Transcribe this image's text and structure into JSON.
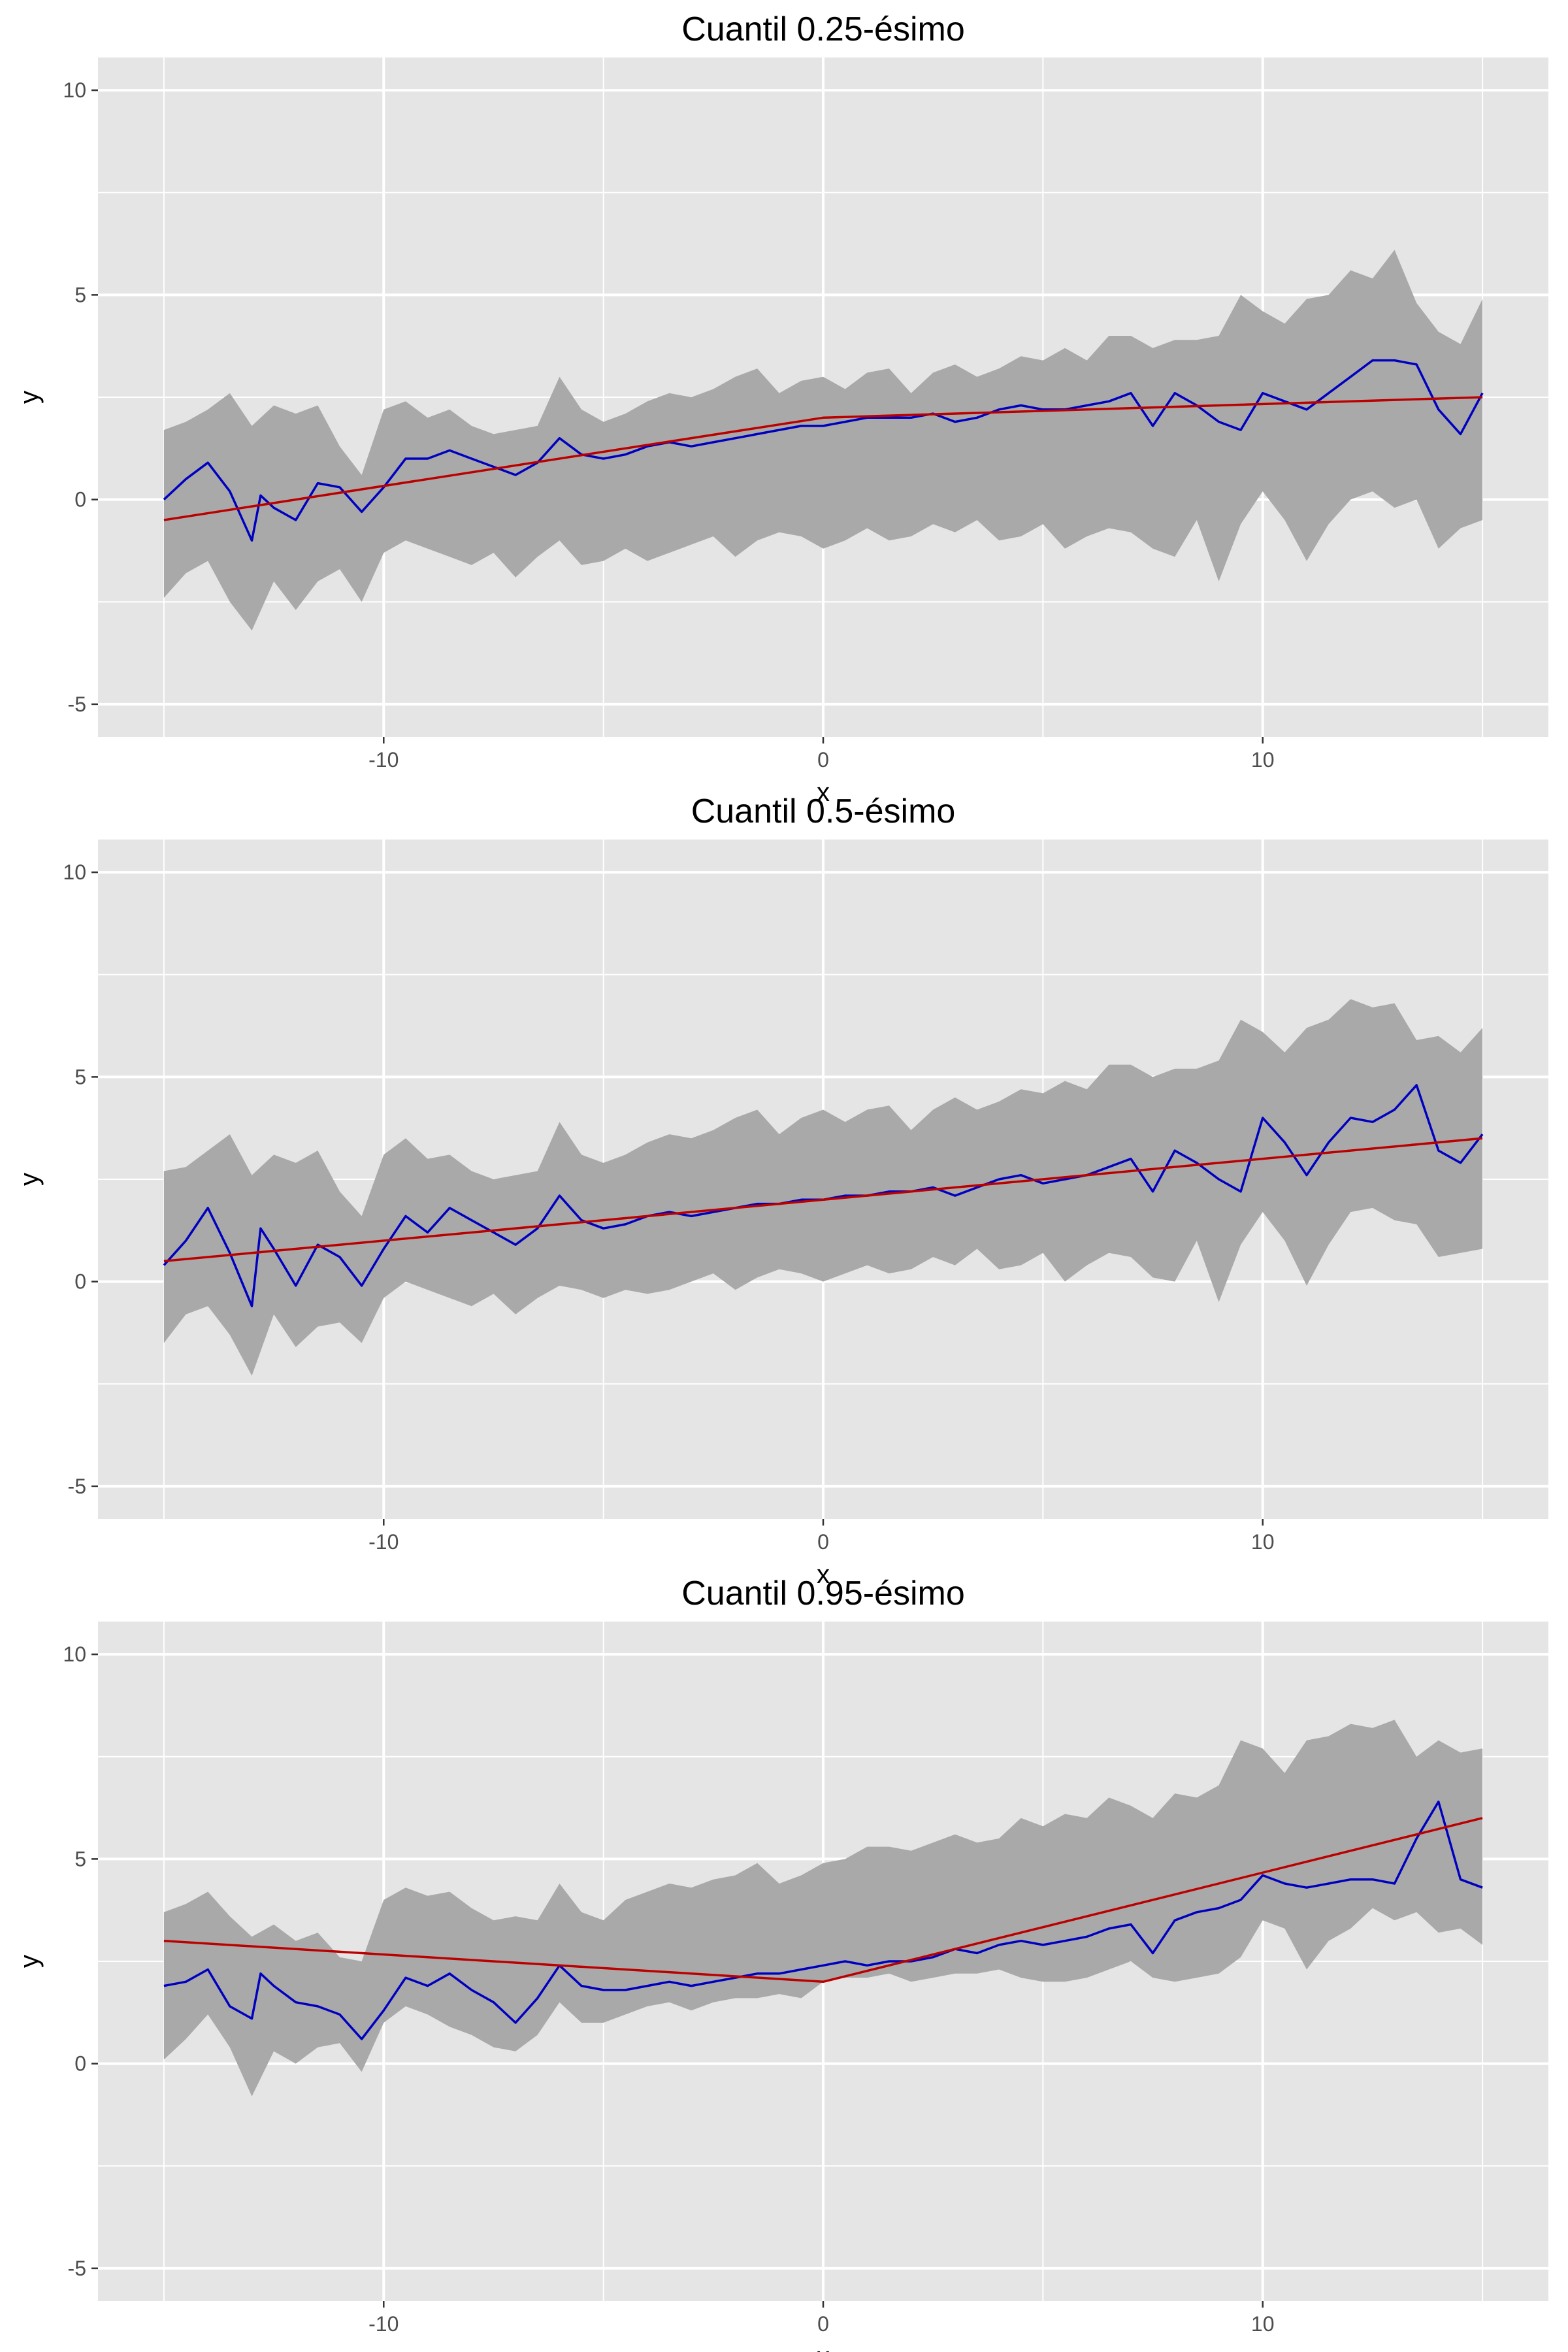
{
  "colors": {
    "panel_background": "#E5E5E5",
    "grid_major": "#FFFFFF",
    "grid_minor": "#F2F2F2",
    "band_fill": "#A9A9A9",
    "estimate_line": "#0000C0",
    "true_line": "#BB0000",
    "tick_text": "#4D4D4D",
    "tick_mark": "#333333"
  },
  "chart_data": [
    {
      "type": "area",
      "title": "Cuantil 0.25-ésimo",
      "xlabel": "x",
      "ylabel": "y",
      "xlim": [
        -16.5,
        16.5
      ],
      "ylim": [
        -5.8,
        10.8
      ],
      "x_ticks": [
        -10,
        0,
        10
      ],
      "x_tick_labels": [
        "-10",
        "0",
        "10"
      ],
      "y_ticks": [
        -5,
        0,
        5,
        10
      ],
      "y_tick_labels": [
        "-5",
        "0",
        "5",
        "10"
      ],
      "grid": true,
      "series": [
        {
          "kind": "band",
          "x": [
            -15,
            -14.5,
            -14,
            -13.5,
            -13,
            -12.5,
            -12,
            -11.5,
            -11,
            -10.5,
            -10,
            -9.5,
            -9,
            -8.5,
            -8,
            -7.5,
            -7,
            -6.5,
            -6,
            -5.5,
            -5,
            -4.5,
            -4,
            -3.5,
            -3,
            -2.5,
            -2,
            -1.5,
            -1,
            -0.5,
            0,
            0.5,
            1,
            1.5,
            2,
            2.5,
            3,
            3.5,
            4,
            4.5,
            5,
            5.5,
            6,
            6.5,
            7,
            7.5,
            8,
            8.5,
            9,
            9.5,
            10,
            10.5,
            11,
            11.5,
            12,
            12.5,
            13,
            13.5,
            14,
            14.5,
            15
          ],
          "lower": [
            -2.4,
            -1.8,
            -1.5,
            -2.5,
            -3.2,
            -2.0,
            -2.7,
            -2.0,
            -1.7,
            -2.5,
            -1.3,
            -1.0,
            -1.2,
            -1.4,
            -1.6,
            -1.3,
            -1.9,
            -1.4,
            -1.0,
            -1.6,
            -1.5,
            -1.2,
            -1.5,
            -1.3,
            -1.1,
            -0.9,
            -1.4,
            -1.0,
            -0.8,
            -0.9,
            -1.2,
            -1.0,
            -0.7,
            -1.0,
            -0.9,
            -0.6,
            -0.8,
            -0.5,
            -1.0,
            -0.9,
            -0.6,
            -1.2,
            -0.9,
            -0.7,
            -0.8,
            -1.2,
            -1.4,
            -0.5,
            -2.0,
            -0.6,
            0.2,
            -0.5,
            -1.5,
            -0.6,
            0.0,
            0.2,
            -0.2,
            0.0,
            -1.2,
            -0.7,
            -0.5
          ],
          "upper": [
            1.7,
            1.9,
            2.2,
            2.6,
            1.8,
            2.3,
            2.1,
            2.3,
            1.3,
            0.6,
            2.2,
            2.4,
            2.0,
            2.2,
            1.8,
            1.6,
            1.7,
            1.8,
            3.0,
            2.2,
            1.9,
            2.1,
            2.4,
            2.6,
            2.5,
            2.7,
            3.0,
            3.2,
            2.6,
            2.9,
            3.0,
            2.7,
            3.1,
            3.2,
            2.6,
            3.1,
            3.3,
            3.0,
            3.2,
            3.5,
            3.4,
            3.7,
            3.4,
            4.0,
            4.0,
            3.7,
            3.9,
            3.9,
            4.0,
            5.0,
            4.6,
            4.3,
            4.9,
            5.0,
            5.6,
            5.4,
            6.1,
            4.8,
            4.1,
            3.8,
            4.9
          ]
        },
        {
          "kind": "estimate",
          "x": [
            -15,
            -14.5,
            -14,
            -13.5,
            -13,
            -12.8,
            -12.5,
            -12,
            -11.5,
            -11,
            -10.5,
            -10,
            -9.5,
            -9,
            -8.5,
            -8,
            -7.5,
            -7,
            -6.5,
            -6,
            -5.5,
            -5,
            -4.5,
            -4,
            -3.5,
            -3,
            -2.5,
            -2,
            -1.5,
            -1,
            -0.5,
            0,
            0.5,
            1,
            1.5,
            2,
            2.5,
            3,
            3.5,
            4,
            4.5,
            5,
            5.5,
            6,
            6.5,
            7,
            7.5,
            8,
            8.5,
            9,
            9.5,
            10,
            10.5,
            11,
            11.5,
            12,
            12.5,
            13,
            13.5,
            14,
            14.5,
            15
          ],
          "y": [
            0.0,
            0.5,
            0.9,
            0.2,
            -1.0,
            0.1,
            -0.2,
            -0.5,
            0.4,
            0.3,
            -0.3,
            0.3,
            1.0,
            1.0,
            1.2,
            1.0,
            0.8,
            0.6,
            0.9,
            1.5,
            1.1,
            1.0,
            1.1,
            1.3,
            1.4,
            1.3,
            1.4,
            1.5,
            1.6,
            1.7,
            1.8,
            1.8,
            1.9,
            2.0,
            2.0,
            2.0,
            2.1,
            1.9,
            2.0,
            2.2,
            2.3,
            2.2,
            2.2,
            2.3,
            2.4,
            2.6,
            1.8,
            2.6,
            2.3,
            1.9,
            1.7,
            2.6,
            2.4,
            2.2,
            2.6,
            3.0,
            3.4,
            3.4,
            3.3,
            2.2,
            1.6,
            2.6
          ]
        },
        {
          "kind": "true_quantile",
          "x": [
            -15,
            0,
            15
          ],
          "y": [
            -0.5,
            2.0,
            2.5
          ]
        }
      ]
    },
    {
      "type": "area",
      "title": "Cuantil 0.5-ésimo",
      "xlabel": "x",
      "ylabel": "y",
      "xlim": [
        -16.5,
        16.5
      ],
      "ylim": [
        -5.8,
        10.8
      ],
      "x_ticks": [
        -10,
        0,
        10
      ],
      "x_tick_labels": [
        "-10",
        "0",
        "10"
      ],
      "y_ticks": [
        -5,
        0,
        5,
        10
      ],
      "y_tick_labels": [
        "-5",
        "0",
        "5",
        "10"
      ],
      "grid": true,
      "series": [
        {
          "kind": "band",
          "x": [
            -15,
            -14.5,
            -14,
            -13.5,
            -13,
            -12.5,
            -12,
            -11.5,
            -11,
            -10.5,
            -10,
            -9.5,
            -9,
            -8.5,
            -8,
            -7.5,
            -7,
            -6.5,
            -6,
            -5.5,
            -5,
            -4.5,
            -4,
            -3.5,
            -3,
            -2.5,
            -2,
            -1.5,
            -1,
            -0.5,
            0,
            0.5,
            1,
            1.5,
            2,
            2.5,
            3,
            3.5,
            4,
            4.5,
            5,
            5.5,
            6,
            6.5,
            7,
            7.5,
            8,
            8.5,
            9,
            9.5,
            10,
            10.5,
            11,
            11.5,
            12,
            12.5,
            13,
            13.5,
            14,
            14.5,
            15
          ],
          "lower": [
            -1.5,
            -0.8,
            -0.6,
            -1.3,
            -2.3,
            -0.8,
            -1.6,
            -1.1,
            -1.0,
            -1.5,
            -0.4,
            0.0,
            -0.2,
            -0.4,
            -0.6,
            -0.3,
            -0.8,
            -0.4,
            -0.1,
            -0.2,
            -0.4,
            -0.2,
            -0.3,
            -0.2,
            0.0,
            0.2,
            -0.2,
            0.1,
            0.3,
            0.2,
            0.0,
            0.2,
            0.4,
            0.2,
            0.3,
            0.6,
            0.4,
            0.8,
            0.3,
            0.4,
            0.7,
            0.0,
            0.4,
            0.7,
            0.6,
            0.1,
            0.0,
            1.0,
            -0.5,
            0.9,
            1.7,
            1.0,
            -0.1,
            0.9,
            1.7,
            1.8,
            1.5,
            1.4,
            0.6,
            0.7,
            0.8
          ],
          "upper": [
            2.7,
            2.8,
            3.2,
            3.6,
            2.6,
            3.1,
            2.9,
            3.2,
            2.2,
            1.6,
            3.1,
            3.5,
            3.0,
            3.1,
            2.7,
            2.5,
            2.6,
            2.7,
            3.9,
            3.1,
            2.9,
            3.1,
            3.4,
            3.6,
            3.5,
            3.7,
            4.0,
            4.2,
            3.6,
            4.0,
            4.2,
            3.9,
            4.2,
            4.3,
            3.7,
            4.2,
            4.5,
            4.2,
            4.4,
            4.7,
            4.6,
            4.9,
            4.7,
            5.3,
            5.3,
            5.0,
            5.2,
            5.2,
            5.4,
            6.4,
            6.1,
            5.6,
            6.2,
            6.4,
            6.9,
            6.7,
            6.8,
            5.9,
            6.0,
            5.6,
            6.2
          ]
        },
        {
          "kind": "estimate",
          "x": [
            -15,
            -14.5,
            -14,
            -13.5,
            -13,
            -12.8,
            -12.5,
            -12,
            -11.5,
            -11,
            -10.5,
            -10,
            -9.5,
            -9,
            -8.5,
            -8,
            -7.5,
            -7,
            -6.5,
            -6,
            -5.5,
            -5,
            -4.5,
            -4,
            -3.5,
            -3,
            -2.5,
            -2,
            -1.5,
            -1,
            -0.5,
            0,
            0.5,
            1,
            1.5,
            2,
            2.5,
            3,
            3.5,
            4,
            4.5,
            5,
            5.5,
            6,
            6.5,
            7,
            7.5,
            8,
            8.5,
            9,
            9.5,
            10,
            10.5,
            11,
            11.5,
            12,
            12.5,
            13,
            13.5,
            14,
            14.5,
            15
          ],
          "y": [
            0.4,
            1.0,
            1.8,
            0.7,
            -0.6,
            1.3,
            0.8,
            -0.1,
            0.9,
            0.6,
            -0.1,
            0.8,
            1.6,
            1.2,
            1.8,
            1.5,
            1.2,
            0.9,
            1.3,
            2.1,
            1.5,
            1.3,
            1.4,
            1.6,
            1.7,
            1.6,
            1.7,
            1.8,
            1.9,
            1.9,
            2.0,
            2.0,
            2.1,
            2.1,
            2.2,
            2.2,
            2.3,
            2.1,
            2.3,
            2.5,
            2.6,
            2.4,
            2.5,
            2.6,
            2.8,
            3.0,
            2.2,
            3.2,
            2.9,
            2.5,
            2.2,
            4.0,
            3.4,
            2.6,
            3.4,
            4.0,
            3.9,
            4.2,
            4.8,
            3.2,
            2.9,
            3.6
          ]
        },
        {
          "kind": "true_quantile",
          "x": [
            -15,
            15
          ],
          "y": [
            0.5,
            3.5
          ]
        }
      ]
    },
    {
      "type": "area",
      "title": "Cuantil 0.95-ésimo",
      "xlabel": "x",
      "ylabel": "y",
      "xlim": [
        -16.5,
        16.5
      ],
      "ylim": [
        -5.8,
        10.8
      ],
      "x_ticks": [
        -10,
        0,
        10
      ],
      "x_tick_labels": [
        "-10",
        "0",
        "10"
      ],
      "y_ticks": [
        -5,
        0,
        5,
        10
      ],
      "y_tick_labels": [
        "-5",
        "0",
        "5",
        "10"
      ],
      "grid": true,
      "series": [
        {
          "kind": "band",
          "x": [
            -15,
            -14.5,
            -14,
            -13.5,
            -13,
            -12.5,
            -12,
            -11.5,
            -11,
            -10.5,
            -10,
            -9.5,
            -9,
            -8.5,
            -8,
            -7.5,
            -7,
            -6.5,
            -6,
            -5.5,
            -5,
            -4.5,
            -4,
            -3.5,
            -3,
            -2.5,
            -2,
            -1.5,
            -1,
            -0.5,
            0,
            0.5,
            1,
            1.5,
            2,
            2.5,
            3,
            3.5,
            4,
            4.5,
            5,
            5.5,
            6,
            6.5,
            7,
            7.5,
            8,
            8.5,
            9,
            9.5,
            10,
            10.5,
            11,
            11.5,
            12,
            12.5,
            13,
            13.5,
            14,
            14.5,
            15
          ],
          "lower": [
            0.1,
            0.6,
            1.2,
            0.4,
            -0.8,
            0.3,
            0.0,
            0.4,
            0.5,
            -0.2,
            1.0,
            1.4,
            1.2,
            0.9,
            0.7,
            0.4,
            0.3,
            0.7,
            1.5,
            1.0,
            1.0,
            1.2,
            1.4,
            1.5,
            1.3,
            1.5,
            1.6,
            1.6,
            1.7,
            1.6,
            2.0,
            2.1,
            2.1,
            2.2,
            2.0,
            2.1,
            2.2,
            2.2,
            2.3,
            2.1,
            2.0,
            2.0,
            2.1,
            2.3,
            2.5,
            2.1,
            2.0,
            2.1,
            2.2,
            2.6,
            3.5,
            3.3,
            2.3,
            3.0,
            3.3,
            3.8,
            3.5,
            3.7,
            3.2,
            3.3,
            2.9
          ],
          "upper": [
            3.7,
            3.9,
            4.2,
            3.6,
            3.1,
            3.4,
            3.0,
            3.2,
            2.6,
            2.5,
            4.0,
            4.3,
            4.1,
            4.2,
            3.8,
            3.5,
            3.6,
            3.5,
            4.4,
            3.7,
            3.5,
            4.0,
            4.2,
            4.4,
            4.3,
            4.5,
            4.6,
            4.9,
            4.4,
            4.6,
            4.9,
            5.0,
            5.3,
            5.3,
            5.2,
            5.4,
            5.6,
            5.4,
            5.5,
            6.0,
            5.8,
            6.1,
            6.0,
            6.5,
            6.3,
            6.0,
            6.6,
            6.5,
            6.8,
            7.9,
            7.7,
            7.1,
            7.9,
            8.0,
            8.3,
            8.2,
            8.4,
            7.5,
            7.9,
            7.6,
            7.7
          ]
        },
        {
          "kind": "estimate",
          "x": [
            -15,
            -14.5,
            -14,
            -13.5,
            -13,
            -12.8,
            -12.5,
            -12,
            -11.5,
            -11,
            -10.5,
            -10,
            -9.5,
            -9,
            -8.5,
            -8,
            -7.5,
            -7,
            -6.5,
            -6,
            -5.5,
            -5,
            -4.5,
            -4,
            -3.5,
            -3,
            -2.5,
            -2,
            -1.5,
            -1,
            -0.5,
            0,
            0.5,
            1,
            1.5,
            2,
            2.5,
            3,
            3.5,
            4,
            4.5,
            5,
            5.5,
            6,
            6.5,
            7,
            7.5,
            8,
            8.5,
            9,
            9.5,
            10,
            10.5,
            11,
            11.5,
            12,
            12.5,
            13,
            13.5,
            14,
            14.5,
            15
          ],
          "y": [
            1.9,
            2.0,
            2.3,
            1.4,
            1.1,
            2.2,
            1.9,
            1.5,
            1.4,
            1.2,
            0.6,
            1.3,
            2.1,
            1.9,
            2.2,
            1.8,
            1.5,
            1.0,
            1.6,
            2.4,
            1.9,
            1.8,
            1.8,
            1.9,
            2.0,
            1.9,
            2.0,
            2.1,
            2.2,
            2.2,
            2.3,
            2.4,
            2.5,
            2.4,
            2.5,
            2.5,
            2.6,
            2.8,
            2.7,
            2.9,
            3.0,
            2.9,
            3.0,
            3.1,
            3.3,
            3.4,
            2.7,
            3.5,
            3.7,
            3.8,
            4.0,
            4.6,
            4.4,
            4.3,
            4.4,
            4.5,
            4.5,
            4.4,
            5.5,
            6.4,
            4.5,
            4.3
          ]
        },
        {
          "kind": "true_quantile",
          "x": [
            -15,
            0,
            15
          ],
          "y": [
            3.0,
            2.0,
            6.0
          ]
        }
      ]
    }
  ]
}
